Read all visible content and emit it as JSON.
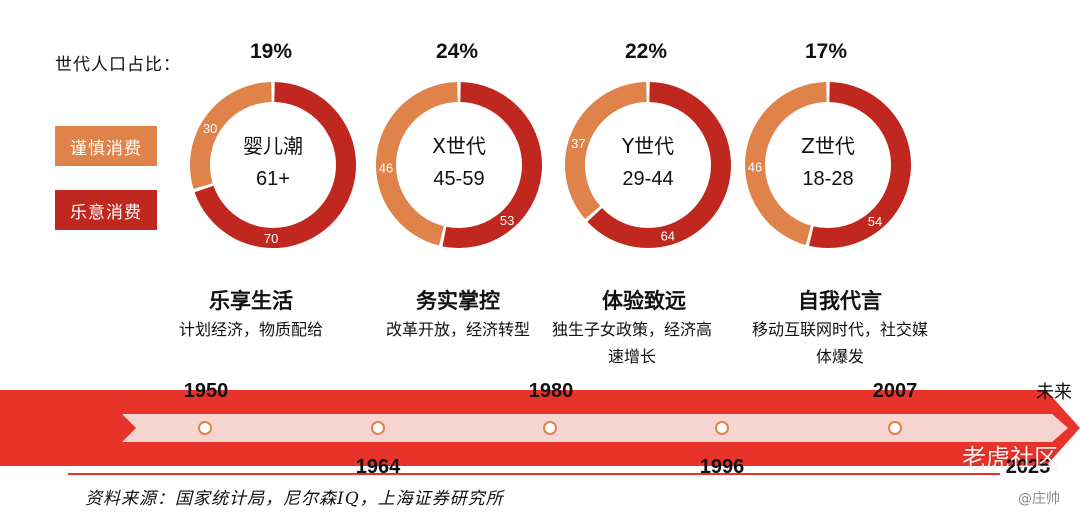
{
  "share_label": "世代人口占比：",
  "legend": {
    "cautious": "谨慎消费",
    "willing": "乐意消费"
  },
  "colors": {
    "cautious": "#e0834a",
    "willing": "#c0271f",
    "arrow": "#e8332a",
    "arrow_light": "#f6d4cf"
  },
  "chart_data": {
    "type": "pie",
    "series_names": [
      "谨慎消费",
      "乐意消费"
    ],
    "generations": [
      {
        "share": "19%",
        "name": "婴儿潮",
        "age": "61+",
        "cautious": 30,
        "willing": 70,
        "theme": "乐享生活",
        "desc": "计划经济，物质配给"
      },
      {
        "share": "24%",
        "name": "X世代",
        "age": "45-59",
        "cautious": 46,
        "willing": 53,
        "theme": "务实掌控",
        "desc": "改革开放，经济转型"
      },
      {
        "share": "22%",
        "name": "Y世代",
        "age": "29-44",
        "cautious": 37,
        "willing": 64,
        "theme": "体验致远",
        "desc": "独生子女政策，经济高速增长"
      },
      {
        "share": "17%",
        "name": "Z世代",
        "age": "18-28",
        "cautious": 46,
        "willing": 54,
        "theme": "自我代言",
        "desc": "移动互联网时代，社交媒体爆发"
      }
    ]
  },
  "timeline": {
    "top_years": [
      "1950",
      "1980",
      "2007"
    ],
    "bottom_years": [
      "1964",
      "1996",
      "2025"
    ],
    "future": "未来"
  },
  "source": "资料来源：国家统计局，尼尔森IQ，上海证券研究所",
  "watermark": "老虎社区",
  "watermark_user": "@庄帅"
}
